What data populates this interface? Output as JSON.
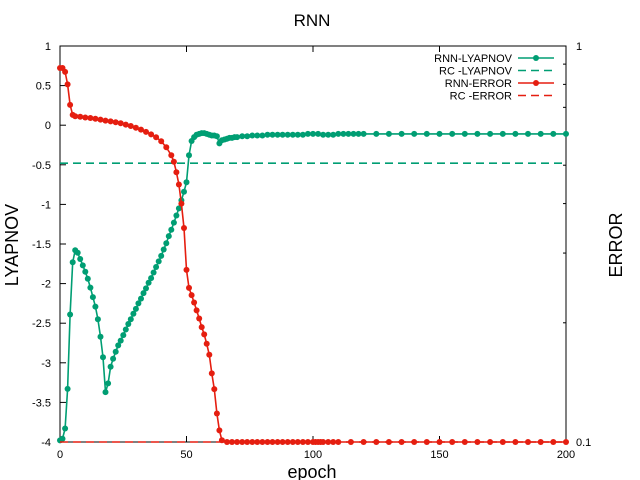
{
  "chart_data": {
    "type": "line",
    "title": "RNN",
    "xlabel": "epoch",
    "ylabel": "LYAPNOV",
    "y2label": "ERROR",
    "xlim": [
      0,
      200
    ],
    "ylim": [
      -4,
      1
    ],
    "y2lim": [
      0.1,
      1
    ],
    "y2scale": "log",
    "grid": false,
    "legend_position": "top-right",
    "xticks": [
      "0",
      "50",
      "100",
      "150",
      "200"
    ],
    "yticks": [
      "1",
      "0.5",
      "0",
      "-0.5",
      "-1",
      "-1.5",
      "-2",
      "-2.5",
      "-3",
      "-3.5",
      "-4"
    ],
    "y2ticks": [
      "1",
      "0.1"
    ],
    "colors": {
      "lyapnov": "#009e73",
      "error": "#e51e10"
    },
    "series": [
      {
        "name": "RNN-LYAPNOV",
        "axis": "y",
        "style": "line-points",
        "x": [
          0,
          1,
          2,
          3,
          4,
          5,
          6,
          7,
          8,
          9,
          10,
          11,
          12,
          13,
          14,
          15,
          16,
          17,
          18,
          19,
          20,
          21,
          22,
          23,
          24,
          25,
          26,
          27,
          28,
          29,
          30,
          31,
          32,
          33,
          34,
          35,
          36,
          37,
          38,
          39,
          40,
          41,
          42,
          43,
          44,
          45,
          46,
          47,
          48,
          49,
          50,
          51,
          52,
          53,
          54,
          55,
          56,
          57,
          58,
          59,
          60,
          61,
          62,
          63,
          64,
          65,
          66,
          67,
          68,
          69,
          70,
          72,
          74,
          76,
          78,
          80,
          82,
          84,
          86,
          88,
          90,
          92,
          94,
          96,
          98,
          100,
          102,
          104,
          106,
          108,
          110,
          112,
          114,
          116,
          118,
          120,
          125,
          130,
          135,
          140,
          145,
          150,
          155,
          160,
          165,
          170,
          175,
          180,
          185,
          190,
          195,
          200
        ],
        "y": [
          -3.98,
          -3.96,
          -3.83,
          -3.33,
          -2.39,
          -1.73,
          -1.58,
          -1.61,
          -1.69,
          -1.77,
          -1.85,
          -1.94,
          -2.05,
          -2.17,
          -2.29,
          -2.45,
          -2.67,
          -2.93,
          -3.37,
          -3.26,
          -3.05,
          -2.95,
          -2.86,
          -2.78,
          -2.72,
          -2.65,
          -2.58,
          -2.51,
          -2.45,
          -2.38,
          -2.32,
          -2.25,
          -2.19,
          -2.12,
          -2.06,
          -1.99,
          -1.93,
          -1.86,
          -1.79,
          -1.72,
          -1.65,
          -1.57,
          -1.49,
          -1.4,
          -1.32,
          -1.23,
          -1.14,
          -1.05,
          -0.95,
          -0.84,
          -0.72,
          -0.38,
          -0.2,
          -0.15,
          -0.12,
          -0.11,
          -0.1,
          -0.1,
          -0.11,
          -0.12,
          -0.13,
          -0.13,
          -0.14,
          -0.23,
          -0.19,
          -0.18,
          -0.17,
          -0.16,
          -0.16,
          -0.15,
          -0.15,
          -0.14,
          -0.14,
          -0.13,
          -0.13,
          -0.13,
          -0.12,
          -0.12,
          -0.12,
          -0.12,
          -0.12,
          -0.12,
          -0.12,
          -0.12,
          -0.11,
          -0.11,
          -0.11,
          -0.12,
          -0.12,
          -0.12,
          -0.11,
          -0.11,
          -0.11,
          -0.11,
          -0.11,
          -0.11,
          -0.11,
          -0.11,
          -0.11,
          -0.11,
          -0.11,
          -0.11,
          -0.11,
          -0.11,
          -0.11,
          -0.11,
          -0.11,
          -0.11,
          -0.11,
          -0.11,
          -0.11,
          -0.11
        ]
      },
      {
        "name": "RC -LYAPNOV",
        "axis": "y",
        "style": "dashed",
        "x": [
          0,
          200
        ],
        "y": [
          -0.48,
          -0.48
        ]
      },
      {
        "name": "RNN-ERROR",
        "axis": "y2",
        "style": "line-points",
        "x": [
          0,
          1,
          2,
          3,
          4,
          5,
          6,
          8,
          10,
          12,
          14,
          16,
          18,
          20,
          22,
          24,
          26,
          28,
          30,
          32,
          34,
          36,
          38,
          40,
          42,
          44,
          45,
          46,
          47,
          48,
          49,
          50,
          51,
          52,
          53,
          54,
          55,
          56,
          57,
          58,
          59,
          60,
          61,
          62,
          63,
          64,
          66,
          68,
          70,
          72,
          74,
          76,
          78,
          80,
          82,
          84,
          86,
          88,
          90,
          92,
          94,
          96,
          98,
          100,
          101,
          102,
          103,
          104,
          106,
          108,
          110,
          115,
          120,
          125,
          130,
          135,
          140,
          145,
          150,
          155,
          160,
          165,
          170,
          175,
          180,
          185,
          190,
          195,
          200
        ],
        "y": [
          0.88,
          0.88,
          0.86,
          0.8,
          0.71,
          0.67,
          0.665,
          0.663,
          0.66,
          0.658,
          0.655,
          0.652,
          0.648,
          0.645,
          0.642,
          0.638,
          0.633,
          0.628,
          0.622,
          0.615,
          0.607,
          0.598,
          0.588,
          0.575,
          0.555,
          0.53,
          0.51,
          0.48,
          0.447,
          0.4,
          0.347,
          0.272,
          0.245,
          0.235,
          0.225,
          0.215,
          0.205,
          0.195,
          0.187,
          0.177,
          0.166,
          0.149,
          0.136,
          0.118,
          0.107,
          0.101,
          0.1,
          0.1,
          0.1,
          0.1,
          0.1,
          0.1,
          0.1,
          0.1,
          0.1,
          0.1,
          0.1,
          0.1,
          0.1,
          0.1,
          0.1,
          0.1,
          0.1,
          0.1,
          0.1,
          0.1,
          0.1,
          0.1,
          0.1,
          0.1,
          0.1,
          0.1,
          0.1,
          0.1,
          0.1,
          0.1,
          0.1,
          0.1,
          0.1,
          0.1,
          0.1,
          0.1,
          0.1,
          0.1,
          0.1,
          0.1,
          0.1,
          0.1,
          0.1
        ]
      },
      {
        "name": "RC -ERROR",
        "axis": "y2",
        "style": "dashed",
        "x": [
          0,
          200
        ],
        "y": [
          0.1,
          0.1
        ]
      }
    ]
  }
}
